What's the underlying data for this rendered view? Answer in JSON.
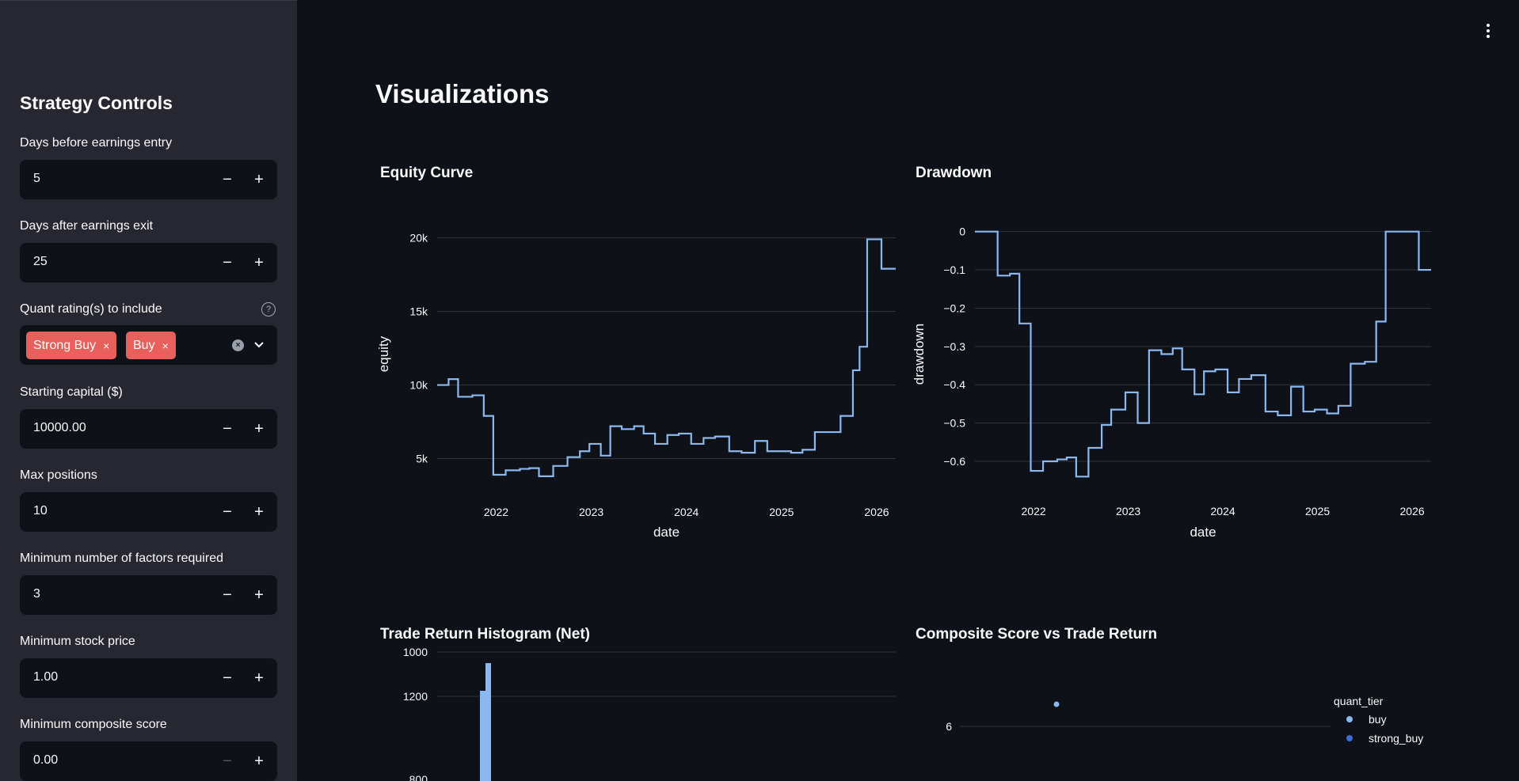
{
  "sidebar": {
    "title": "Strategy Controls",
    "fields": [
      {
        "label": "Days before earnings entry",
        "value": "5"
      },
      {
        "label": "Days after earnings exit",
        "value": "25"
      },
      {
        "label": "Starting capital ($)",
        "value": "10000.00"
      },
      {
        "label": "Max positions",
        "value": "10"
      },
      {
        "label": "Minimum number of factors required",
        "value": "3"
      },
      {
        "label": "Minimum stock price",
        "value": "1.00"
      },
      {
        "label": "Minimum composite score",
        "value": "0.00"
      }
    ],
    "multiselect": {
      "label": "Quant rating(s) to include",
      "selected": [
        "Strong Buy",
        "Buy"
      ]
    },
    "icons": {
      "minus": "−",
      "plus": "+",
      "remove": "×",
      "help": "?",
      "clear": "×"
    }
  },
  "main": {
    "title": "Visualizations"
  },
  "colors": {
    "line": "#8ab8f0",
    "buy": "#8ab8f0",
    "strong_buy": "#3b6fd8",
    "tag": "#e8605c"
  },
  "chart_data": [
    {
      "type": "line",
      "title": "Equity Curve",
      "xlabel": "date",
      "ylabel": "equity",
      "xticks": [
        "2022",
        "2023",
        "2024",
        "2025",
        "2026"
      ],
      "yticks": [
        {
          "v": 5000,
          "label": "5k"
        },
        {
          "v": 10000,
          "label": "10k"
        },
        {
          "v": 15000,
          "label": "15k"
        },
        {
          "v": 20000,
          "label": "20k"
        }
      ],
      "xlim": [
        2021.38,
        2026.2
      ],
      "ylim": [
        3200,
        21000
      ],
      "line_shape": "step",
      "x": [
        2021.38,
        2021.5,
        2021.6,
        2021.75,
        2021.87,
        2021.97,
        2022.1,
        2022.25,
        2022.35,
        2022.45,
        2022.6,
        2022.75,
        2022.88,
        2022.98,
        2023.1,
        2023.2,
        2023.32,
        2023.45,
        2023.55,
        2023.67,
        2023.8,
        2023.92,
        2024.05,
        2024.18,
        2024.3,
        2024.45,
        2024.58,
        2024.72,
        2024.85,
        2024.97,
        2025.1,
        2025.22,
        2025.35,
        2025.5,
        2025.62,
        2025.75,
        2025.82,
        2025.9,
        2025.97,
        2026.05,
        2026.2
      ],
      "y": [
        10000,
        10400,
        9200,
        9300,
        7900,
        3900,
        4200,
        4300,
        4350,
        3800,
        4500,
        5100,
        5500,
        6000,
        5200,
        7200,
        7000,
        7200,
        6700,
        6000,
        6600,
        6700,
        6000,
        6400,
        6500,
        5500,
        5400,
        6200,
        5500,
        5500,
        5400,
        5600,
        6800,
        6800,
        7900,
        11000,
        12600,
        19900,
        19900,
        17900,
        17900
      ]
    },
    {
      "type": "line",
      "title": "Drawdown",
      "xlabel": "date",
      "ylabel": "drawdown",
      "xticks": [
        "2022",
        "2023",
        "2024",
        "2025",
        "2026"
      ],
      "yticks": [
        {
          "v": 0,
          "label": "0"
        },
        {
          "v": -0.1,
          "label": "−0.1"
        },
        {
          "v": -0.2,
          "label": "−0.2"
        },
        {
          "v": -0.3,
          "label": "−0.3"
        },
        {
          "v": -0.4,
          "label": "−0.4"
        },
        {
          "v": -0.5,
          "label": "−0.5"
        },
        {
          "v": -0.6,
          "label": "−0.6"
        }
      ],
      "xlim": [
        2021.38,
        2026.2
      ],
      "ylim": [
        -0.66,
        0.02
      ],
      "line_shape": "step",
      "x": [
        2021.38,
        2021.62,
        2021.75,
        2021.85,
        2021.97,
        2022.1,
        2022.25,
        2022.35,
        2022.45,
        2022.58,
        2022.72,
        2022.82,
        2022.97,
        2023.1,
        2023.22,
        2023.35,
        2023.47,
        2023.57,
        2023.7,
        2023.8,
        2023.92,
        2024.05,
        2024.17,
        2024.3,
        2024.45,
        2024.58,
        2024.72,
        2024.85,
        2024.97,
        2025.1,
        2025.22,
        2025.35,
        2025.5,
        2025.62,
        2025.72,
        2026.07,
        2026.2
      ],
      "y": [
        0,
        -0.115,
        -0.11,
        -0.24,
        -0.625,
        -0.6,
        -0.595,
        -0.59,
        -0.64,
        -0.565,
        -0.505,
        -0.465,
        -0.42,
        -0.5,
        -0.31,
        -0.32,
        -0.305,
        -0.36,
        -0.425,
        -0.365,
        -0.36,
        -0.42,
        -0.385,
        -0.375,
        -0.47,
        -0.48,
        -0.405,
        -0.47,
        -0.465,
        -0.475,
        -0.455,
        -0.345,
        -0.34,
        -0.235,
        0,
        -0.1,
        -0.1
      ]
    },
    {
      "type": "bar",
      "title": "Trade Return Histogram (Net)",
      "yticks": [
        {
          "v": 1000,
          "label": "1000"
        },
        {
          "v": 1200,
          "label": "1200"
        }
      ],
      "ylim": [
        780,
        1250
      ],
      "values": [
        1175,
        1050
      ]
    },
    {
      "type": "scatter",
      "title": "Composite Score vs Trade Return",
      "legend_title": "quant_tier",
      "legend": [
        "buy",
        "strong_buy"
      ],
      "legend_position": "top-right",
      "yticks": [
        {
          "v": 6,
          "label": "6"
        }
      ],
      "points": [
        {
          "tier": "buy",
          "y": 6.4
        }
      ]
    }
  ]
}
